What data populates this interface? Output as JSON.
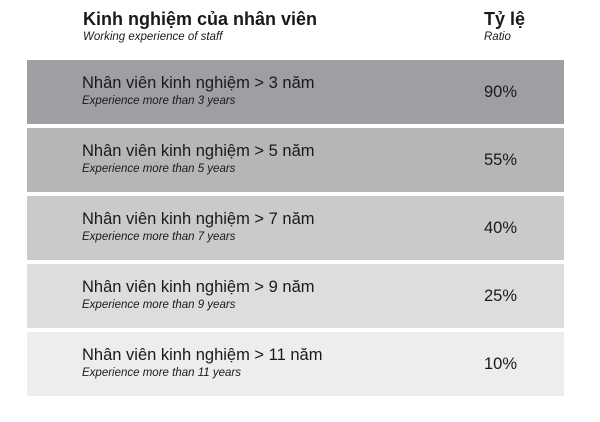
{
  "header": {
    "title": "Kinh nghiệm của nhân viên",
    "subtitle": "Working experience of staff",
    "ratio_title": "Tỷ lệ",
    "ratio_subtitle": "Ratio"
  },
  "rows": [
    {
      "title": "Nhân viên kinh nghiệm > 3 năm",
      "subtitle": "Experience more than 3 years",
      "ratio": "90%",
      "color": "#9d9fa2"
    },
    {
      "title": "Nhân viên kinh nghiệm > 5 năm",
      "subtitle": "Experience more than 5 years",
      "ratio": "55%",
      "color": "#b4b6b8"
    },
    {
      "title": "Nhân viên kinh nghiệm > 7 năm",
      "subtitle": "Experience more than 7 years",
      "ratio": "40%",
      "color": "#c9cacc"
    },
    {
      "title": "Nhân viên kinh nghiệm > 9 năm",
      "subtitle": "Experience more than 9 years",
      "ratio": "25%",
      "color": "#dcdddf"
    },
    {
      "title": "Nhân viên kinh nghiệm > 11 năm",
      "subtitle": "Experience more than 11 years",
      "ratio": "10%",
      "color": "#ededee"
    }
  ]
}
